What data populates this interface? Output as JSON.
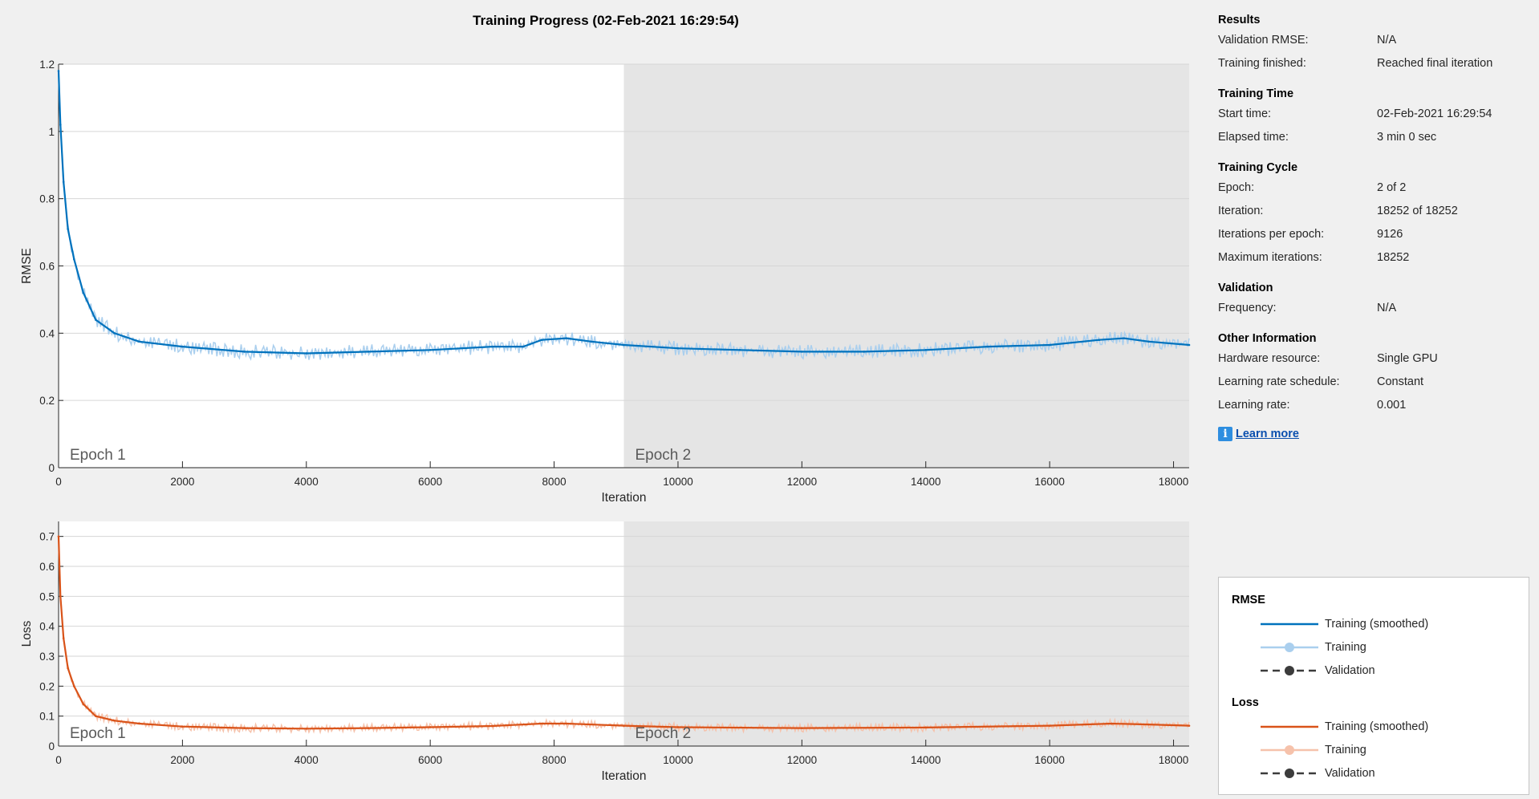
{
  "title": "Training Progress (02-Feb-2021 16:29:54)",
  "colors": {
    "rmse_smoothed": "#0072bd",
    "rmse_raw": "#aacfee",
    "loss_smoothed": "#d95319",
    "loss_raw": "#f6c2ab",
    "validation": "#3c3c3c",
    "epoch2_shade": "#e5e5e5"
  },
  "chart_data": [
    {
      "type": "line",
      "ylabel": "RMSE",
      "xlabel": "Iteration",
      "xlim": [
        0,
        18252
      ],
      "ylim": [
        0,
        1.2
      ],
      "xticks": [
        0,
        2000,
        4000,
        6000,
        8000,
        10000,
        12000,
        14000,
        16000,
        18000
      ],
      "yticks": [
        0,
        0.2,
        0.4,
        0.6,
        0.8,
        1,
        1.2
      ],
      "ytick_labels": [
        "0",
        "0.2",
        "0.4",
        "0.6",
        "0.8",
        "1",
        "1.2"
      ],
      "epoch_labels": [
        "Epoch 1",
        "Epoch 2"
      ],
      "epoch_boundary": 9126,
      "grid": true,
      "series": [
        {
          "name": "Training (smoothed)",
          "x": [
            0,
            30,
            80,
            150,
            250,
            400,
            600,
            900,
            1300,
            2000,
            3000,
            4000,
            5000,
            6000,
            7000,
            7500,
            7800,
            8200,
            8600,
            9126,
            10000,
            11000,
            12000,
            13000,
            14000,
            15000,
            16000,
            16800,
            17200,
            17600,
            18252
          ],
          "y": [
            1.18,
            1.02,
            0.85,
            0.71,
            0.62,
            0.52,
            0.44,
            0.4,
            0.375,
            0.36,
            0.345,
            0.34,
            0.345,
            0.35,
            0.36,
            0.36,
            0.38,
            0.385,
            0.375,
            0.365,
            0.355,
            0.35,
            0.345,
            0.345,
            0.35,
            0.36,
            0.365,
            0.38,
            0.385,
            0.375,
            0.365
          ]
        }
      ]
    },
    {
      "type": "line",
      "ylabel": "Loss",
      "xlabel": "Iteration",
      "xlim": [
        0,
        18252
      ],
      "ylim": [
        0,
        0.75
      ],
      "xticks": [
        0,
        2000,
        4000,
        6000,
        8000,
        10000,
        12000,
        14000,
        16000,
        18000
      ],
      "yticks": [
        0,
        0.1,
        0.2,
        0.3,
        0.4,
        0.5,
        0.6,
        0.7
      ],
      "ytick_labels": [
        "0",
        "0.1",
        "0.2",
        "0.3",
        "0.4",
        "0.5",
        "0.6",
        "0.7"
      ],
      "epoch_labels": [
        "Epoch 1",
        "Epoch 2"
      ],
      "epoch_boundary": 9126,
      "grid": true,
      "series": [
        {
          "name": "Training (smoothed)",
          "x": [
            0,
            30,
            80,
            150,
            250,
            400,
            600,
            900,
            1300,
            2000,
            3000,
            4000,
            5000,
            6000,
            7000,
            7800,
            8200,
            9126,
            10000,
            12000,
            14000,
            16000,
            17000,
            17600,
            18252
          ],
          "y": [
            0.7,
            0.5,
            0.36,
            0.26,
            0.2,
            0.14,
            0.1,
            0.085,
            0.075,
            0.065,
            0.06,
            0.058,
            0.06,
            0.063,
            0.067,
            0.075,
            0.075,
            0.068,
            0.063,
            0.06,
            0.062,
            0.068,
            0.075,
            0.072,
            0.068
          ]
        }
      ]
    }
  ],
  "info": {
    "sections": [
      {
        "title": "Results",
        "rows": [
          {
            "k": "Validation RMSE:",
            "v": "N/A"
          },
          {
            "k": "Training finished:",
            "v": "Reached final iteration"
          }
        ]
      },
      {
        "title": "Training Time",
        "rows": [
          {
            "k": "Start time:",
            "v": "02-Feb-2021 16:29:54"
          },
          {
            "k": "Elapsed time:",
            "v": "3 min 0 sec"
          }
        ]
      },
      {
        "title": "Training Cycle",
        "rows": [
          {
            "k": "Epoch:",
            "v": "2 of 2"
          },
          {
            "k": "Iteration:",
            "v": "18252 of 18252"
          },
          {
            "k": "Iterations per epoch:",
            "v": "9126"
          },
          {
            "k": "Maximum iterations:",
            "v": "18252"
          }
        ]
      },
      {
        "title": "Validation",
        "rows": [
          {
            "k": "Frequency:",
            "v": "N/A"
          }
        ]
      },
      {
        "title": "Other Information",
        "rows": [
          {
            "k": "Hardware resource:",
            "v": "Single GPU"
          },
          {
            "k": "Learning rate schedule:",
            "v": "Constant"
          },
          {
            "k": "Learning rate:",
            "v": "0.001"
          }
        ]
      }
    ],
    "learn_more": "Learn more"
  },
  "legend": {
    "rmse_title": "RMSE",
    "loss_title": "Loss",
    "training_smoothed": "Training (smoothed)",
    "training": "Training",
    "validation": "Validation"
  }
}
